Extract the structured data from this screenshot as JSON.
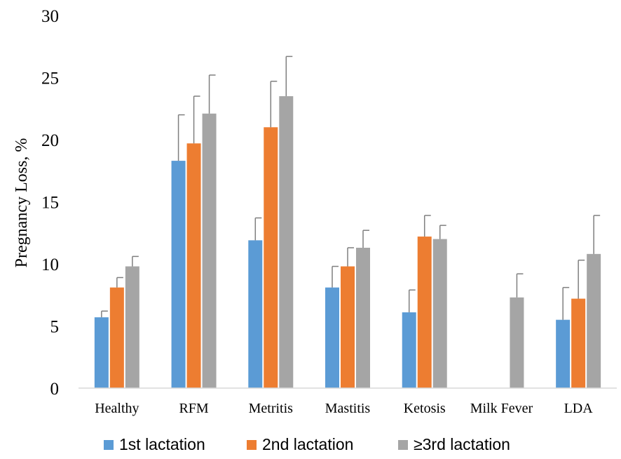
{
  "chart_data": {
    "type": "bar",
    "title": "",
    "xlabel": "",
    "ylabel": "Pregnancy Loss, %",
    "ylim": [
      0,
      30
    ],
    "yticks": [
      "0",
      "5",
      "10",
      "15",
      "20",
      "25",
      "30"
    ],
    "grid": false,
    "legend_position": "bottom",
    "error_bars": "upper only",
    "categories": [
      "Healthy",
      "RFM",
      "Metritis",
      "Mastitis",
      "Ketosis",
      "Milk Fever",
      "LDA"
    ],
    "series": [
      {
        "name": "1st lactation",
        "color": "#5b9bd5",
        "values": [
          5.7,
          18.3,
          11.9,
          8.1,
          6.1,
          null,
          5.5
        ],
        "error_upper": [
          6.2,
          22.0,
          13.7,
          9.8,
          7.9,
          null,
          8.1
        ]
      },
      {
        "name": "2nd lactation",
        "color": "#ed7d31",
        "values": [
          8.1,
          19.7,
          21.0,
          9.8,
          12.2,
          null,
          7.2
        ],
        "error_upper": [
          8.9,
          23.5,
          24.7,
          11.3,
          13.9,
          null,
          10.3
        ]
      },
      {
        "name": "≥3rd lactation",
        "color": "#a5a5a5",
        "values": [
          9.8,
          22.1,
          23.5,
          11.3,
          12.0,
          7.3,
          10.8
        ],
        "error_upper": [
          10.6,
          25.2,
          26.7,
          12.7,
          13.1,
          9.2,
          13.9
        ]
      }
    ],
    "error_bar_color": "#7f7f7f"
  }
}
